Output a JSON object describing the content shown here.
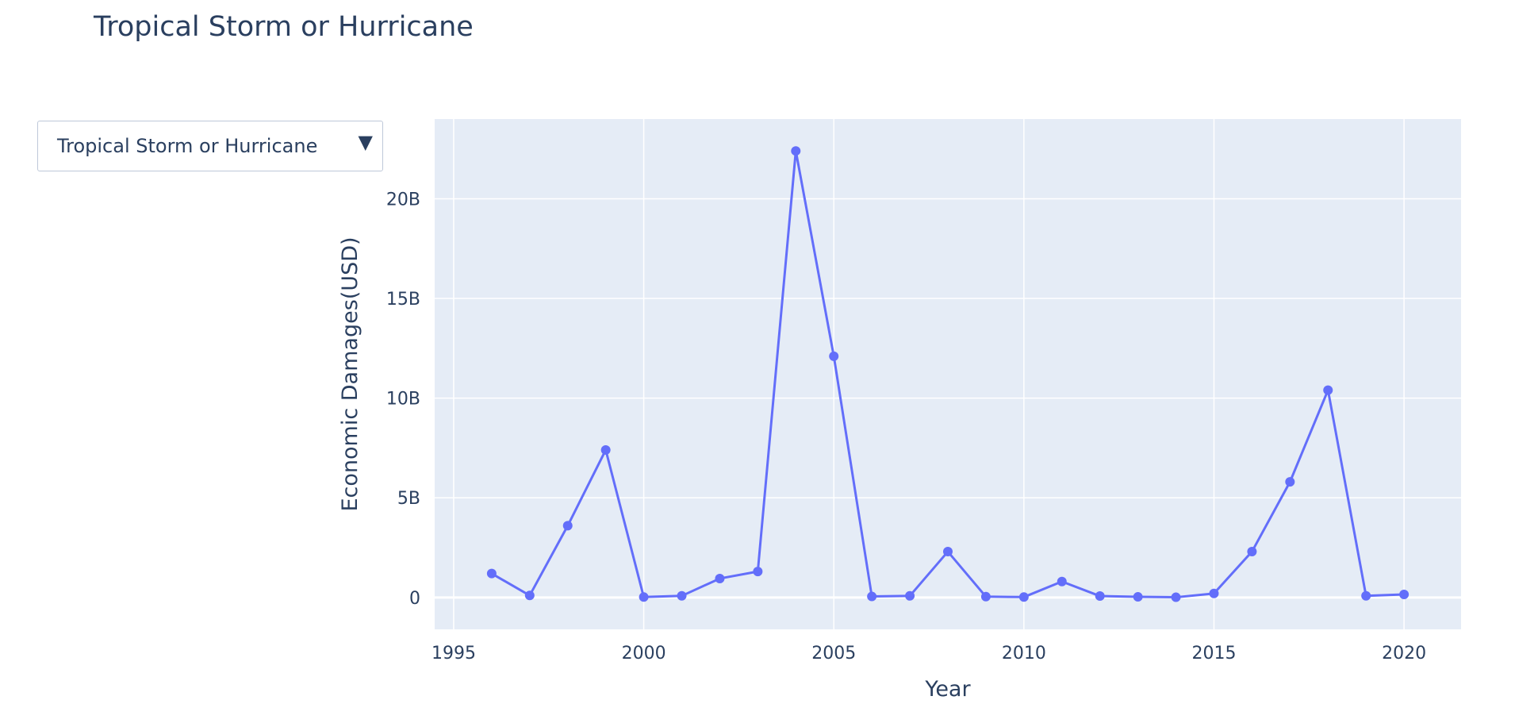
{
  "title": "Tropical Storm or Hurricane",
  "dropdown": {
    "selected": "Tropical Storm or Hurricane",
    "arrow": "▼"
  },
  "colors": {
    "line": "#636efa",
    "plot_bg": "#e5ecf6",
    "grid": "#ffffff",
    "text": "#2a3f5f"
  },
  "chart_data": {
    "type": "line",
    "title": "Tropical Storm or Hurricane",
    "xlabel": "Year",
    "ylabel": "Economic Damages(USD)",
    "xlim": [
      1994.5,
      2021.5
    ],
    "ylim": [
      -1.6,
      24
    ],
    "y_unit": "billion USD",
    "xticks": [
      1995,
      2000,
      2005,
      2010,
      2015,
      2020
    ],
    "yticks": [
      0,
      5,
      10,
      15,
      20
    ],
    "ytick_labels": [
      "0",
      "5B",
      "10B",
      "15B",
      "20B"
    ],
    "grid": true,
    "x": [
      1996,
      1997,
      1998,
      1999,
      2000,
      2001,
      2002,
      2003,
      2004,
      2005,
      2006,
      2007,
      2008,
      2009,
      2010,
      2011,
      2012,
      2013,
      2014,
      2015,
      2016,
      2017,
      2018,
      2019,
      2020
    ],
    "y": [
      1.2,
      0.1,
      3.6,
      7.4,
      0.02,
      0.08,
      0.95,
      1.3,
      22.4,
      12.1,
      0.05,
      0.08,
      2.3,
      0.04,
      0.02,
      0.8,
      0.07,
      0.03,
      0.01,
      0.2,
      2.3,
      5.8,
      10.4,
      0.08,
      0.15
    ]
  }
}
